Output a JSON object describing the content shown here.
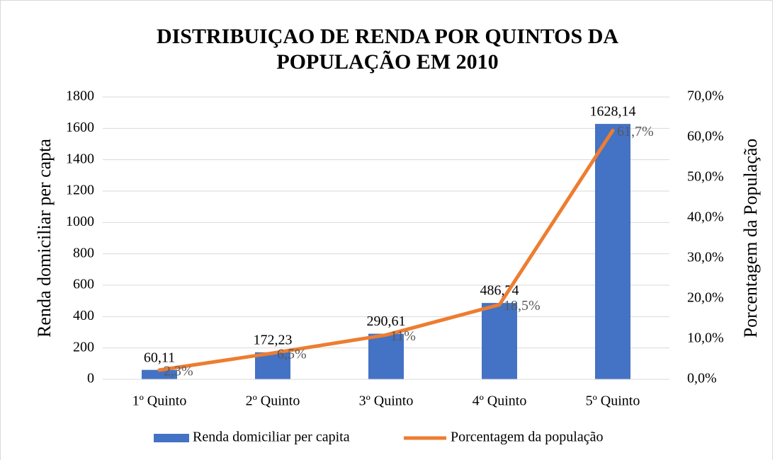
{
  "chart_data": {
    "type": "bar",
    "title": "DISTRIBUIÇAO DE RENDA POR QUINTOS DA POPULAÇÃO EM 2010",
    "ylabel": "Renda domiciliar per capta",
    "y2label": "Porcentagem da População",
    "categories": [
      "1º Quinto",
      "2º Quinto",
      "3º Quinto",
      "4º Quinto",
      "5º Quinto"
    ],
    "series": [
      {
        "name": "Renda domiciliar per capita",
        "type": "bar",
        "color": "#4472c4",
        "values": [
          60.11,
          172.23,
          290.61,
          486.74,
          1628.14
        ],
        "value_labels": [
          "60,11",
          "172,23",
          "290,61",
          "486,74",
          "1628,14"
        ]
      },
      {
        "name": "Porcentagem da população",
        "type": "line",
        "axis": "y2",
        "color": "#ed7d31",
        "values": [
          2.3,
          6.5,
          11,
          18.5,
          61.7
        ],
        "value_labels": [
          "2,3%",
          "6,5%",
          "11%",
          "18,5%",
          "61,7%"
        ]
      }
    ],
    "ylim": [
      0,
      1800
    ],
    "yticks": [
      0,
      200,
      400,
      600,
      800,
      1000,
      1200,
      1400,
      1600,
      1800
    ],
    "y2lim": [
      0,
      70
    ],
    "y2ticks": [
      {
        "value": 0,
        "label": "0,0%"
      },
      {
        "value": 10,
        "label": "10,0%"
      },
      {
        "value": 20,
        "label": "20,0%"
      },
      {
        "value": 30,
        "label": "30,0%"
      },
      {
        "value": 40,
        "label": "40,0%"
      },
      {
        "value": 50,
        "label": "50,0%"
      },
      {
        "value": 60,
        "label": "60,0%"
      },
      {
        "value": 70,
        "label": "70,0%"
      }
    ],
    "grid": true,
    "legend": "bottom"
  }
}
